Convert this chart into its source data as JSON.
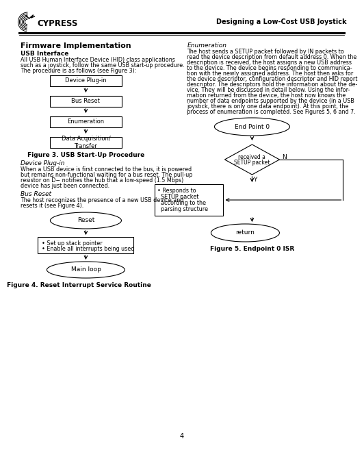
{
  "title": "Designing a Low-Cost USB Joystick",
  "page_num": "4",
  "bg_color": "#ffffff",
  "section_title": "Firmware Implementation",
  "subsection1": "USB Interface",
  "body_text1_lines": [
    "All USB Human Interface Device (HID) class applications",
    "such as a joystick, follow the same USB start-up procedure.",
    "The procedure is as follows (see Figure 3):"
  ],
  "fig3_caption": "Figure 3. USB Start-Up Procedure",
  "fig3_boxes": [
    "Device Plug-in",
    "Bus Reset",
    "Enumeration",
    "Data Acquisition/\nTransfer"
  ],
  "subsection_device": "Device Plug-in",
  "body_device_lines": [
    "When a USB device is first connected to the bus, it is powered",
    "but remains non-functional waiting for a bus reset. The pull-up",
    "resistor on D− notifies the hub that a low-speed (1.5 Mbps)",
    "device has just been connected."
  ],
  "subsection_bus": "Bus Reset",
  "body_bus_lines": [
    "The host recognizes the presence of a new USB device and",
    "resets it (see Figure 4)."
  ],
  "fig4_caption": "Figure 4. Reset Interrupt Service Routine",
  "fig4_ellipse1": "Reset",
  "fig4_box_lines": [
    "• Set up stack pointer",
    "• Enable all interrupts being used"
  ],
  "fig4_ellipse2": "Main loop",
  "right_section_title": "Enumeration",
  "right_body_lines": [
    "The host sends a SETUP packet followed by IN packets to",
    "read the device description from default address 0. When the",
    "description is received, the host assigns a new USB address",
    "to the device. The device begins responding to communica-",
    "tion with the newly assigned address. The host then asks for",
    "the device descriptor, configuration descriptor and HID report",
    "descriptor. The descriptors hold the information about the de-",
    "vice. They will be discussed in detail below. Using the infor-",
    "mation returned from the device, the host now knows the",
    "number of data endpoints supported by the device (in a USB",
    "joystick, there is only one data endpoint). At this point, the",
    "process of enumeration is completed. See Figures 5, 6 and 7."
  ],
  "fig5_caption": "Figure 5. Endpoint 0 ISR",
  "fig5_ellipse1": "End Point 0",
  "fig5_diamond_lines": [
    "received a",
    "SETUP packet"
  ],
  "fig5_box_lines": [
    "• Responds to",
    "  SETUP packet",
    "  according to the",
    "  parsing structure"
  ],
  "fig5_ellipse2": "return",
  "fig5_N_label": "N",
  "fig5_Y_label": "Y"
}
